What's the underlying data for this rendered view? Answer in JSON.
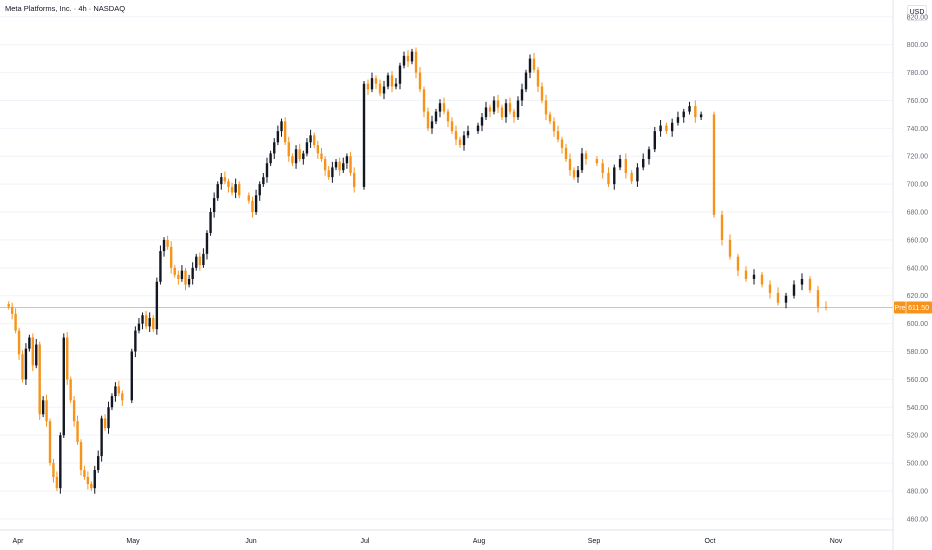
{
  "header": {
    "title": "Meta Platforms, Inc. · 4h · NASDAQ",
    "currency": "USD"
  },
  "colors": {
    "up": "#131722",
    "down": "#f7931a",
    "current_line": "#f7931a",
    "price_tag": "#f7931a",
    "grid": "#f0f3fa"
  },
  "chart_data": {
    "type": "candlestick",
    "title": "Meta Platforms, Inc. · 4h · NASDAQ",
    "ylim": [
      452,
      822
    ],
    "y_ticks": [
      460,
      480,
      500,
      520,
      540,
      560,
      580,
      600,
      620,
      640,
      660,
      680,
      700,
      720,
      740,
      760,
      780,
      800,
      820
    ],
    "x_labels": [
      "Apr",
      "May",
      "Jun",
      "Jul",
      "Aug",
      "Sep",
      "Oct",
      "Nov"
    ],
    "grid": true,
    "current_price": {
      "label": "Pre",
      "value": 611.5,
      "value_text": "611.50"
    },
    "series": [
      {
        "month": "Apr",
        "closes": [
          612,
          607,
          595,
          578,
          560,
          582,
          590,
          570,
          585,
          535,
          545,
          530,
          500,
          490,
          482,
          520,
          590,
          560,
          545,
          530,
          515,
          495,
          490,
          485,
          482,
          495,
          505,
          532,
          525,
          540,
          548,
          555,
          550,
          545
        ]
      },
      {
        "month": "May",
        "closes": [
          580,
          595,
          600,
          606,
          598,
          604,
          596,
          630,
          652,
          660,
          655,
          640,
          635,
          632,
          638,
          628,
          632,
          640,
          648,
          642,
          650,
          665,
          680,
          690,
          700,
          705,
          702,
          698,
          694,
          700,
          692
        ]
      },
      {
        "month": "Jun",
        "closes": [
          688,
          680,
          692,
          700,
          705,
          715,
          722,
          730,
          738,
          745,
          730,
          720,
          715,
          725,
          718,
          722,
          730,
          735,
          728,
          722,
          718,
          710,
          705,
          712,
          716,
          710,
          715,
          720,
          708,
          698
        ]
      },
      {
        "month": "Jul",
        "closes": [
          772,
          768,
          776,
          772,
          765,
          770,
          778,
          770,
          772,
          785,
          792,
          788,
          795,
          780,
          768,
          752,
          740,
          745,
          752,
          758,
          752,
          745,
          738,
          732,
          728,
          735,
          738
        ]
      },
      {
        "month": "Aug",
        "closes": [
          742,
          748,
          755,
          752,
          760,
          755,
          748,
          758,
          752,
          748,
          760,
          768,
          780,
          790,
          782,
          770,
          760,
          750,
          745,
          738,
          732,
          726,
          718,
          710,
          705,
          710,
          722,
          718
        ]
      },
      {
        "month": "Sep",
        "closes": [
          715,
          708,
          700,
          712,
          718,
          708,
          702,
          712,
          718,
          725,
          738,
          742,
          738,
          744,
          748,
          752,
          756,
          748,
          750
        ]
      },
      {
        "month": "Oct",
        "closes": [
          678,
          660,
          648,
          638,
          632,
          635,
          628,
          622,
          615,
          620,
          628,
          632,
          624,
          612,
          611.5
        ]
      }
    ]
  }
}
